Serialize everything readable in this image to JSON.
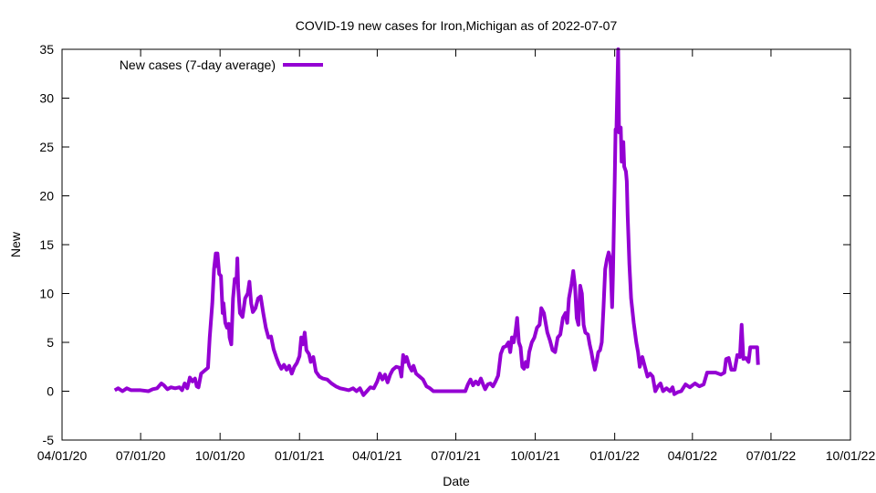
{
  "chart_data": {
    "type": "line",
    "title": "COVID-19 new cases for Iron,Michigan as of 2022-07-07",
    "xlabel": "Date",
    "ylabel": "New",
    "xlim": [
      "2020-04-01",
      "2022-10-01"
    ],
    "ylim": [
      -5,
      35
    ],
    "grid": false,
    "legend_position": "top-left",
    "x_ticks": [
      "04/01/20",
      "07/01/20",
      "10/01/20",
      "01/01/21",
      "04/01/21",
      "07/01/21",
      "10/01/21",
      "01/01/22",
      "04/01/22",
      "07/01/22",
      "10/01/22"
    ],
    "y_ticks": [
      "-5",
      "0",
      "5",
      "10",
      "15",
      "20",
      "25",
      "30",
      "35"
    ],
    "series": [
      {
        "name": "New cases (7-day average)",
        "color": "#9400d3",
        "points": [
          [
            "2020-06-01",
            0.1
          ],
          [
            "2020-06-05",
            0.3
          ],
          [
            "2020-06-10",
            0.0
          ],
          [
            "2020-06-15",
            0.3
          ],
          [
            "2020-06-20",
            0.1
          ],
          [
            "2020-07-01",
            0.1
          ],
          [
            "2020-07-10",
            0.0
          ],
          [
            "2020-07-15",
            0.2
          ],
          [
            "2020-07-20",
            0.3
          ],
          [
            "2020-07-25",
            0.8
          ],
          [
            "2020-07-28",
            0.6
          ],
          [
            "2020-08-01",
            0.2
          ],
          [
            "2020-08-05",
            0.4
          ],
          [
            "2020-08-10",
            0.3
          ],
          [
            "2020-08-15",
            0.4
          ],
          [
            "2020-08-18",
            0.1
          ],
          [
            "2020-08-21",
            0.8
          ],
          [
            "2020-08-24",
            0.3
          ],
          [
            "2020-08-27",
            1.4
          ],
          [
            "2020-08-30",
            1.0
          ],
          [
            "2020-09-02",
            1.3
          ],
          [
            "2020-09-04",
            0.5
          ],
          [
            "2020-09-06",
            0.4
          ],
          [
            "2020-09-09",
            1.8
          ],
          [
            "2020-09-13",
            2.1
          ],
          [
            "2020-09-17",
            2.4
          ],
          [
            "2020-09-19",
            5.5
          ],
          [
            "2020-09-22",
            9.0
          ],
          [
            "2020-09-24",
            12.5
          ],
          [
            "2020-09-26",
            14.1
          ],
          [
            "2020-09-27",
            12.8
          ],
          [
            "2020-09-28",
            14.1
          ],
          [
            "2020-09-30",
            12.0
          ],
          [
            "2020-10-02",
            11.8
          ],
          [
            "2020-10-04",
            8.0
          ],
          [
            "2020-10-05",
            9.0
          ],
          [
            "2020-10-07",
            7.0
          ],
          [
            "2020-10-09",
            6.5
          ],
          [
            "2020-10-11",
            6.9
          ],
          [
            "2020-10-12",
            5.5
          ],
          [
            "2020-10-14",
            4.8
          ],
          [
            "2020-10-16",
            9.5
          ],
          [
            "2020-10-18",
            11.5
          ],
          [
            "2020-10-20",
            11.2
          ],
          [
            "2020-10-21",
            13.6
          ],
          [
            "2020-10-22",
            10.6
          ],
          [
            "2020-10-24",
            8.0
          ],
          [
            "2020-10-27",
            7.6
          ],
          [
            "2020-10-30",
            9.5
          ],
          [
            "2020-11-02",
            10.0
          ],
          [
            "2020-11-04",
            11.2
          ],
          [
            "2020-11-06",
            9.0
          ],
          [
            "2020-11-08",
            8.1
          ],
          [
            "2020-11-11",
            8.5
          ],
          [
            "2020-11-14",
            9.5
          ],
          [
            "2020-11-17",
            9.7
          ],
          [
            "2020-11-20",
            8.0
          ],
          [
            "2020-11-23",
            6.5
          ],
          [
            "2020-11-26",
            5.5
          ],
          [
            "2020-11-29",
            5.6
          ],
          [
            "2020-12-02",
            4.3
          ],
          [
            "2020-12-05",
            3.5
          ],
          [
            "2020-12-08",
            2.8
          ],
          [
            "2020-12-11",
            2.3
          ],
          [
            "2020-12-14",
            2.7
          ],
          [
            "2020-12-17",
            2.2
          ],
          [
            "2020-12-20",
            2.6
          ],
          [
            "2020-12-23",
            1.8
          ],
          [
            "2020-12-26",
            2.5
          ],
          [
            "2020-12-29",
            2.9
          ],
          [
            "2021-01-01",
            3.6
          ],
          [
            "2021-01-03",
            5.5
          ],
          [
            "2021-01-05",
            4.8
          ],
          [
            "2021-01-07",
            6.0
          ],
          [
            "2021-01-09",
            4.2
          ],
          [
            "2021-01-12",
            3.8
          ],
          [
            "2021-01-14",
            3.0
          ],
          [
            "2021-01-17",
            3.5
          ],
          [
            "2021-01-20",
            2.0
          ],
          [
            "2021-01-24",
            1.5
          ],
          [
            "2021-01-28",
            1.3
          ],
          [
            "2021-02-02",
            1.2
          ],
          [
            "2021-02-07",
            0.8
          ],
          [
            "2021-02-12",
            0.5
          ],
          [
            "2021-02-17",
            0.3
          ],
          [
            "2021-02-22",
            0.2
          ],
          [
            "2021-02-27",
            0.1
          ],
          [
            "2021-03-04",
            0.3
          ],
          [
            "2021-03-08",
            0.0
          ],
          [
            "2021-03-12",
            0.3
          ],
          [
            "2021-03-16",
            -0.4
          ],
          [
            "2021-03-20",
            0.0
          ],
          [
            "2021-03-24",
            0.4
          ],
          [
            "2021-03-28",
            0.3
          ],
          [
            "2021-04-01",
            1.0
          ],
          [
            "2021-04-04",
            1.8
          ],
          [
            "2021-04-07",
            1.2
          ],
          [
            "2021-04-10",
            1.7
          ],
          [
            "2021-04-13",
            0.9
          ],
          [
            "2021-04-16",
            1.7
          ],
          [
            "2021-04-19",
            2.2
          ],
          [
            "2021-04-23",
            2.5
          ],
          [
            "2021-04-27",
            2.4
          ],
          [
            "2021-04-29",
            1.5
          ],
          [
            "2021-05-01",
            3.7
          ],
          [
            "2021-05-03",
            3.0
          ],
          [
            "2021-05-05",
            3.5
          ],
          [
            "2021-05-08",
            2.6
          ],
          [
            "2021-05-11",
            2.1
          ],
          [
            "2021-05-13",
            2.6
          ],
          [
            "2021-05-16",
            1.8
          ],
          [
            "2021-05-20",
            1.5
          ],
          [
            "2021-05-24",
            1.2
          ],
          [
            "2021-05-28",
            0.5
          ],
          [
            "2021-06-01",
            0.3
          ],
          [
            "2021-06-05",
            0.0
          ],
          [
            "2021-06-15",
            0.0
          ],
          [
            "2021-06-25",
            0.0
          ],
          [
            "2021-07-05",
            0.0
          ],
          [
            "2021-07-12",
            0.0
          ],
          [
            "2021-07-15",
            0.7
          ],
          [
            "2021-07-18",
            1.2
          ],
          [
            "2021-07-21",
            0.6
          ],
          [
            "2021-07-24",
            1.0
          ],
          [
            "2021-07-27",
            0.7
          ],
          [
            "2021-07-30",
            1.3
          ],
          [
            "2021-08-02",
            0.6
          ],
          [
            "2021-08-04",
            0.2
          ],
          [
            "2021-08-07",
            0.7
          ],
          [
            "2021-08-10",
            0.8
          ],
          [
            "2021-08-13",
            0.5
          ],
          [
            "2021-08-16",
            1.0
          ],
          [
            "2021-08-19",
            1.6
          ],
          [
            "2021-08-22",
            3.8
          ],
          [
            "2021-08-25",
            4.5
          ],
          [
            "2021-08-28",
            4.6
          ],
          [
            "2021-08-31",
            5.0
          ],
          [
            "2021-09-02",
            4.0
          ],
          [
            "2021-09-04",
            5.5
          ],
          [
            "2021-09-06",
            5.0
          ],
          [
            "2021-09-08",
            6.0
          ],
          [
            "2021-09-10",
            7.5
          ],
          [
            "2021-09-12",
            5.0
          ],
          [
            "2021-09-14",
            4.5
          ],
          [
            "2021-09-16",
            2.5
          ],
          [
            "2021-09-18",
            2.3
          ],
          [
            "2021-09-20",
            3.0
          ],
          [
            "2021-09-22",
            2.5
          ],
          [
            "2021-09-24",
            4.0
          ],
          [
            "2021-09-27",
            5.0
          ],
          [
            "2021-09-30",
            5.5
          ],
          [
            "2021-10-03",
            6.5
          ],
          [
            "2021-10-06",
            6.8
          ],
          [
            "2021-10-08",
            8.5
          ],
          [
            "2021-10-11",
            8.0
          ],
          [
            "2021-10-13",
            7.0
          ],
          [
            "2021-10-15",
            6.0
          ],
          [
            "2021-10-18",
            5.2
          ],
          [
            "2021-10-21",
            4.2
          ],
          [
            "2021-10-24",
            4.0
          ],
          [
            "2021-10-27",
            5.5
          ],
          [
            "2021-10-30",
            5.8
          ],
          [
            "2021-11-02",
            7.5
          ],
          [
            "2021-11-05",
            8.0
          ],
          [
            "2021-11-07",
            7.0
          ],
          [
            "2021-11-09",
            9.5
          ],
          [
            "2021-11-12",
            11.0
          ],
          [
            "2021-11-14",
            12.3
          ],
          [
            "2021-11-16",
            10.8
          ],
          [
            "2021-11-18",
            7.5
          ],
          [
            "2021-11-20",
            6.8
          ],
          [
            "2021-11-22",
            10.8
          ],
          [
            "2021-11-24",
            10.0
          ],
          [
            "2021-11-26",
            6.8
          ],
          [
            "2021-11-28",
            6.0
          ],
          [
            "2021-12-01",
            5.8
          ],
          [
            "2021-12-03",
            4.8
          ],
          [
            "2021-12-05",
            4.0
          ],
          [
            "2021-12-07",
            3.0
          ],
          [
            "2021-12-09",
            2.2
          ],
          [
            "2021-12-11",
            3.0
          ],
          [
            "2021-12-13",
            4.0
          ],
          [
            "2021-12-15",
            4.2
          ],
          [
            "2021-12-17",
            5.0
          ],
          [
            "2021-12-19",
            8.5
          ],
          [
            "2021-12-21",
            12.5
          ],
          [
            "2021-12-23",
            13.5
          ],
          [
            "2021-12-25",
            14.2
          ],
          [
            "2021-12-27",
            13.5
          ],
          [
            "2021-12-29",
            8.6
          ],
          [
            "2021-12-30",
            12.0
          ],
          [
            "2022-01-01",
            21.5
          ],
          [
            "2022-01-02",
            26.8
          ],
          [
            "2022-01-03",
            26.8
          ],
          [
            "2022-01-05",
            35.0
          ],
          [
            "2022-01-06",
            26.5
          ],
          [
            "2022-01-08",
            27.0
          ],
          [
            "2022-01-09",
            23.5
          ],
          [
            "2022-01-11",
            25.5
          ],
          [
            "2022-01-12",
            23.0
          ],
          [
            "2022-01-14",
            22.5
          ],
          [
            "2022-01-15",
            21.5
          ],
          [
            "2022-01-16",
            18.0
          ],
          [
            "2022-01-18",
            13.0
          ],
          [
            "2022-01-20",
            9.5
          ],
          [
            "2022-01-23",
            7.0
          ],
          [
            "2022-01-26",
            5.0
          ],
          [
            "2022-01-28",
            4.0
          ],
          [
            "2022-01-30",
            2.5
          ],
          [
            "2022-02-02",
            3.5
          ],
          [
            "2022-02-05",
            2.5
          ],
          [
            "2022-02-08",
            1.5
          ],
          [
            "2022-02-11",
            1.8
          ],
          [
            "2022-02-14",
            1.5
          ],
          [
            "2022-02-17",
            0.0
          ],
          [
            "2022-02-20",
            0.5
          ],
          [
            "2022-02-23",
            0.8
          ],
          [
            "2022-02-26",
            0.0
          ],
          [
            "2022-03-02",
            0.3
          ],
          [
            "2022-03-06",
            0.0
          ],
          [
            "2022-03-09",
            0.4
          ],
          [
            "2022-03-11",
            -0.3
          ],
          [
            "2022-03-15",
            -0.1
          ],
          [
            "2022-03-19",
            0.0
          ],
          [
            "2022-03-24",
            0.7
          ],
          [
            "2022-03-29",
            0.4
          ],
          [
            "2022-04-04",
            0.8
          ],
          [
            "2022-04-09",
            0.5
          ],
          [
            "2022-04-14",
            0.7
          ],
          [
            "2022-04-18",
            1.9
          ],
          [
            "2022-04-22",
            1.9
          ],
          [
            "2022-04-28",
            1.9
          ],
          [
            "2022-05-04",
            1.7
          ],
          [
            "2022-05-08",
            1.9
          ],
          [
            "2022-05-10",
            3.3
          ],
          [
            "2022-05-13",
            3.4
          ],
          [
            "2022-05-16",
            2.2
          ],
          [
            "2022-05-20",
            2.2
          ],
          [
            "2022-05-23",
            3.7
          ],
          [
            "2022-05-26",
            3.5
          ],
          [
            "2022-05-28",
            6.8
          ],
          [
            "2022-05-30",
            3.3
          ],
          [
            "2022-06-02",
            3.4
          ],
          [
            "2022-06-05",
            3.0
          ],
          [
            "2022-06-07",
            4.5
          ],
          [
            "2022-06-12",
            4.5
          ],
          [
            "2022-06-15",
            4.5
          ],
          [
            "2022-06-16",
            2.7
          ]
        ]
      }
    ]
  }
}
